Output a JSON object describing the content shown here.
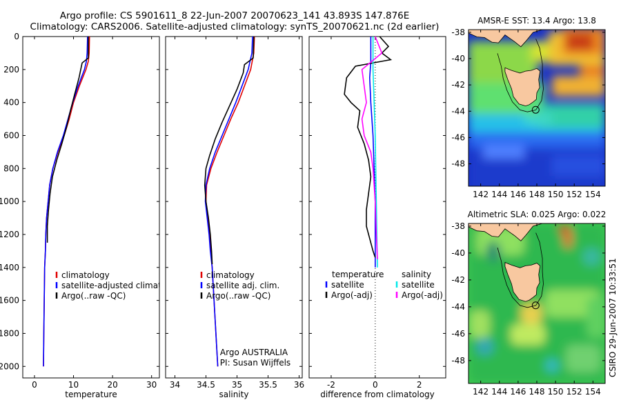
{
  "header": {
    "line1": "Argo profile: CS 5901611_8 22-Jun-2007 20070623_141 43.893S 147.876E",
    "line2": "Climatology: CARS2006. Satellite-adjusted climatology: synTS_20070621.nc (2d earlier)"
  },
  "side_label": "CSIRO 29-Jun-2007 10:33:51",
  "colors": {
    "climatology": "#e00000",
    "satellite": "#0000ff",
    "argo": "#000000",
    "sat_salinity": "#00e8e8",
    "argo_salinity": "#ff00ff"
  },
  "depth_ticks": [
    0,
    200,
    400,
    600,
    800,
    1000,
    1200,
    1400,
    1600,
    1800,
    2000
  ],
  "chart_data": [
    {
      "type": "line",
      "id": "temperature",
      "xlabel": "temperature",
      "xlim": [
        -3,
        32
      ],
      "ylim": [
        2070,
        0
      ],
      "xticks": [
        0,
        10,
        20,
        30
      ],
      "legend": [
        "climatology",
        "satellite-adjusted climatology",
        "Argo(..raw -QC)"
      ],
      "series": [
        {
          "name": "climatology",
          "color": "#e00000",
          "points": [
            [
              14.1,
              0
            ],
            [
              14.0,
              100
            ],
            [
              13.8,
              150
            ],
            [
              13.2,
              200
            ],
            [
              11.5,
              300
            ],
            [
              10.0,
              400
            ],
            [
              8.9,
              500
            ],
            [
              7.6,
              600
            ],
            [
              6.0,
              700
            ],
            [
              4.7,
              800
            ],
            [
              3.9,
              900
            ],
            [
              3.5,
              1000
            ],
            [
              3.1,
              1100
            ],
            [
              2.9,
              1200
            ],
            [
              2.8,
              1300
            ],
            [
              2.6,
              1400
            ],
            [
              2.5,
              1600
            ],
            [
              2.4,
              1800
            ],
            [
              2.3,
              2000
            ]
          ]
        },
        {
          "name": "satellite-adjusted climatology",
          "color": "#0000ff",
          "points": [
            [
              13.6,
              0
            ],
            [
              13.5,
              100
            ],
            [
              13.3,
              150
            ],
            [
              12.8,
              200
            ],
            [
              11.2,
              300
            ],
            [
              9.8,
              400
            ],
            [
              8.6,
              500
            ],
            [
              7.4,
              600
            ],
            [
              5.9,
              700
            ],
            [
              4.7,
              800
            ],
            [
              3.9,
              900
            ],
            [
              3.5,
              1000
            ],
            [
              3.1,
              1100
            ],
            [
              2.9,
              1200
            ],
            [
              2.8,
              1300
            ],
            [
              2.6,
              1400
            ],
            [
              2.5,
              1600
            ],
            [
              2.4,
              1800
            ],
            [
              2.3,
              2000
            ]
          ]
        },
        {
          "name": "Argo(..raw -QC)",
          "color": "#000000",
          "points": [
            [
              13.8,
              0
            ],
            [
              13.8,
              130
            ],
            [
              12.2,
              160
            ],
            [
              11.4,
              250
            ],
            [
              10.3,
              350
            ],
            [
              9.2,
              450
            ],
            [
              8.2,
              550
            ],
            [
              7.0,
              650
            ],
            [
              5.7,
              750
            ],
            [
              4.6,
              850
            ],
            [
              4.0,
              950
            ],
            [
              3.6,
              1050
            ],
            [
              3.3,
              1150
            ],
            [
              3.3,
              1250
            ]
          ]
        }
      ]
    },
    {
      "type": "line",
      "id": "salinity",
      "xlabel": "salinity",
      "xlim": [
        33.85,
        36.05
      ],
      "ylim": [
        2070,
        0
      ],
      "xticks": [
        34,
        34.5,
        35,
        35.5,
        36
      ],
      "legend": [
        "climatology",
        "satellite adj. clim.",
        "Argo(..raw -QC)"
      ],
      "annotation": [
        "Argo AUSTRALIA",
        "PI: Susan Wijffels"
      ],
      "series": [
        {
          "name": "climatology",
          "color": "#e00000",
          "points": [
            [
              35.28,
              0
            ],
            [
              35.27,
              100
            ],
            [
              35.22,
              200
            ],
            [
              35.12,
              300
            ],
            [
              35.02,
              400
            ],
            [
              34.9,
              500
            ],
            [
              34.79,
              600
            ],
            [
              34.68,
              700
            ],
            [
              34.58,
              800
            ],
            [
              34.51,
              900
            ],
            [
              34.5,
              1000
            ],
            [
              34.53,
              1100
            ],
            [
              34.56,
              1200
            ],
            [
              34.58,
              1300
            ],
            [
              34.6,
              1400
            ],
            [
              34.63,
              1600
            ],
            [
              34.66,
              1800
            ],
            [
              34.69,
              2000
            ]
          ]
        },
        {
          "name": "satellite adj. clim.",
          "color": "#0000ff",
          "points": [
            [
              35.25,
              0
            ],
            [
              35.24,
              100
            ],
            [
              35.18,
              200
            ],
            [
              35.08,
              300
            ],
            [
              34.98,
              400
            ],
            [
              34.87,
              500
            ],
            [
              34.76,
              600
            ],
            [
              34.65,
              700
            ],
            [
              34.56,
              800
            ],
            [
              34.5,
              900
            ],
            [
              34.49,
              1000
            ],
            [
              34.52,
              1100
            ],
            [
              34.55,
              1200
            ],
            [
              34.57,
              1300
            ],
            [
              34.6,
              1400
            ],
            [
              34.63,
              1600
            ],
            [
              34.66,
              1800
            ],
            [
              34.69,
              2000
            ]
          ]
        },
        {
          "name": "Argo(..raw -QC)",
          "color": "#000000",
          "points": [
            [
              35.27,
              0
            ],
            [
              35.26,
              130
            ],
            [
              35.12,
              170
            ],
            [
              35.1,
              220
            ],
            [
              35.0,
              320
            ],
            [
              34.88,
              420
            ],
            [
              34.76,
              520
            ],
            [
              34.65,
              620
            ],
            [
              34.56,
              720
            ],
            [
              34.5,
              800
            ],
            [
              34.48,
              900
            ],
            [
              34.5,
              1000
            ],
            [
              34.54,
              1100
            ],
            [
              34.57,
              1200
            ],
            [
              34.59,
              1300
            ],
            [
              34.6,
              1380
            ]
          ]
        }
      ]
    },
    {
      "type": "line",
      "id": "difference",
      "xlabel": "difference from climatology",
      "xlim": [
        -3,
        3.2
      ],
      "ylim": [
        2070,
        0
      ],
      "xticks": [
        -2,
        0,
        2
      ],
      "legend_left_title": "temperature",
      "legend_right_title": "salinity",
      "legend_left": [
        "satellite",
        "Argo(-adj)"
      ],
      "legend_right": [
        "satellite",
        "Argo(-adj)"
      ],
      "series": [
        {
          "name": "temperature satellite",
          "color": "#0000ff",
          "points": [
            [
              -0.2,
              0
            ],
            [
              -0.2,
              150
            ],
            [
              -0.25,
              250
            ],
            [
              -0.2,
              400
            ],
            [
              -0.1,
              600
            ],
            [
              -0.05,
              800
            ],
            [
              0,
              1000
            ],
            [
              0,
              1400
            ]
          ]
        },
        {
          "name": "temperature Argo(-adj)",
          "color": "#000000",
          "points": [
            [
              0.2,
              0
            ],
            [
              0.6,
              60
            ],
            [
              0.3,
              100
            ],
            [
              0.7,
              140
            ],
            [
              0.3,
              150
            ],
            [
              -0.9,
              180
            ],
            [
              -1.3,
              250
            ],
            [
              -1.4,
              350
            ],
            [
              -1.1,
              400
            ],
            [
              -0.7,
              450
            ],
            [
              -0.8,
              550
            ],
            [
              -0.5,
              650
            ],
            [
              -0.3,
              750
            ],
            [
              -0.2,
              850
            ],
            [
              -0.3,
              950
            ],
            [
              -0.4,
              1050
            ],
            [
              -0.4,
              1150
            ],
            [
              -0.2,
              1250
            ],
            [
              -0.1,
              1300
            ],
            [
              0,
              1340
            ]
          ]
        },
        {
          "name": "salinity satellite",
          "color": "#00e8e8",
          "points": [
            [
              -0.1,
              0
            ],
            [
              -0.1,
              200
            ],
            [
              -0.05,
              400
            ],
            [
              0,
              600
            ],
            [
              0.05,
              1000
            ],
            [
              0.1,
              1400
            ]
          ]
        },
        {
          "name": "salinity Argo(-adj)",
          "color": "#ff00ff",
          "points": [
            [
              0,
              0
            ],
            [
              0.3,
              100
            ],
            [
              -0.6,
              200
            ],
            [
              -0.5,
              300
            ],
            [
              -0.4,
              400
            ],
            [
              -0.6,
              500
            ],
            [
              -0.5,
              600
            ],
            [
              -0.2,
              700
            ],
            [
              -0.1,
              800
            ],
            [
              0,
              1000
            ],
            [
              0.05,
              1200
            ],
            [
              0.1,
              1350
            ]
          ]
        }
      ]
    }
  ],
  "maps": [
    {
      "id": "sst",
      "title": "AMSR-E SST: 13.4 Argo: 13.8",
      "yticks": [
        -38,
        -40,
        -42,
        -44,
        -46,
        -48
      ],
      "xticks": [
        142,
        144,
        146,
        148,
        150,
        152,
        154
      ],
      "xlim": [
        140.7,
        155.3
      ],
      "ylim": [
        -49.7,
        -37.8
      ]
    },
    {
      "id": "sla",
      "title": "Altimetric SLA: 0.025 Argo: 0.022",
      "yticks": [
        -38,
        -40,
        -42,
        -44,
        -46,
        -48
      ],
      "xticks": [
        142,
        144,
        146,
        148,
        150,
        152,
        154
      ],
      "xlim": [
        140.7,
        155.3
      ],
      "ylim": [
        -49.7,
        -37.8
      ]
    }
  ]
}
